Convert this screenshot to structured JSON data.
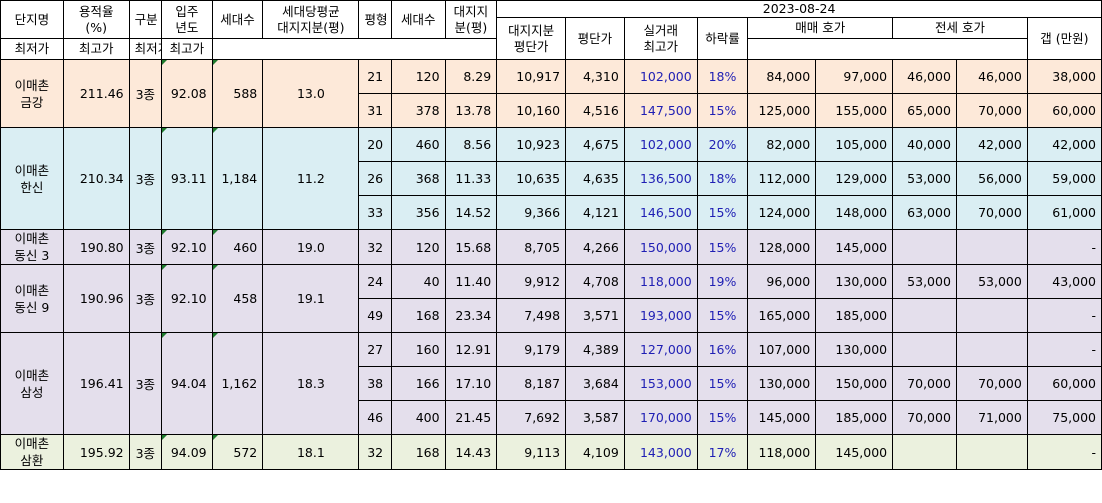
{
  "colors": {
    "complex_backgrounds": [
      "#fde9d9",
      "#daeef3",
      "#e4dfec",
      "#e4dfec",
      "#e4dfec",
      "#ebf1de"
    ],
    "header_bg": "#ffffff",
    "price_text": "#1f1fb4",
    "comment_marker": "#1e7b2e"
  },
  "header": {
    "name": "단지명",
    "far": "용적율\n(%)",
    "grade": "구분",
    "move_in": "입주\n년도",
    "households": "세대수",
    "avg_land": "세대당평균\n대지지분(평)",
    "pyeong": "평형",
    "unit_households": "세대수",
    "land_share": "대지지\n분(평)",
    "date": "2023-08-24",
    "land_price": "대지지분\n평단가",
    "pyeong_price": "평단가",
    "deal_high": "실거래\n최고가",
    "drop_rate": "하락률",
    "sale_ask": "매매 호가",
    "jeonse_ask": "전세 호가",
    "low": "최저가",
    "high": "최고가",
    "gap": "갭 (만원)"
  },
  "complexes": [
    {
      "name": "이매촌\n금강",
      "far": "211.46",
      "grade": "3종",
      "move_in": "92.08",
      "households": "588",
      "avg_land": "13.0",
      "units": [
        {
          "pyeong": "21",
          "households": "120",
          "land": "8.29",
          "land_price": "10,917",
          "pyeong_price": "4,310",
          "deal_high": "102,000",
          "drop": "18%",
          "sale_low": "84,000",
          "sale_high": "97,000",
          "jeonse_low": "46,000",
          "jeonse_high": "46,000",
          "gap": "38,000"
        },
        {
          "pyeong": "31",
          "households": "378",
          "land": "13.78",
          "land_price": "10,160",
          "pyeong_price": "4,516",
          "deal_high": "147,500",
          "drop": "15%",
          "sale_low": "125,000",
          "sale_high": "155,000",
          "jeonse_low": "65,000",
          "jeonse_high": "70,000",
          "gap": "60,000"
        }
      ]
    },
    {
      "name": "이매촌\n한신",
      "far": "210.34",
      "grade": "3종",
      "move_in": "93.11",
      "households": "1,184",
      "avg_land": "11.2",
      "units": [
        {
          "pyeong": "20",
          "households": "460",
          "land": "8.56",
          "land_price": "10,923",
          "pyeong_price": "4,675",
          "deal_high": "102,000",
          "drop": "20%",
          "sale_low": "82,000",
          "sale_high": "105,000",
          "jeonse_low": "40,000",
          "jeonse_high": "42,000",
          "gap": "42,000"
        },
        {
          "pyeong": "26",
          "households": "368",
          "land": "11.33",
          "land_price": "10,635",
          "pyeong_price": "4,635",
          "deal_high": "136,500",
          "drop": "18%",
          "sale_low": "112,000",
          "sale_high": "129,000",
          "jeonse_low": "53,000",
          "jeonse_high": "56,000",
          "gap": "59,000"
        },
        {
          "pyeong": "33",
          "households": "356",
          "land": "14.52",
          "land_price": "9,366",
          "pyeong_price": "4,121",
          "deal_high": "146,500",
          "drop": "15%",
          "sale_low": "124,000",
          "sale_high": "148,000",
          "jeonse_low": "63,000",
          "jeonse_high": "70,000",
          "gap": "61,000"
        }
      ]
    },
    {
      "name": "이매촌\n동신 3",
      "far": "190.80",
      "grade": "3종",
      "move_in": "92.10",
      "households": "460",
      "avg_land": "19.0",
      "units": [
        {
          "pyeong": "32",
          "households": "120",
          "land": "15.68",
          "land_price": "8,705",
          "pyeong_price": "4,266",
          "deal_high": "150,000",
          "drop": "15%",
          "sale_low": "128,000",
          "sale_high": "145,000",
          "jeonse_low": "",
          "jeonse_high": "",
          "gap": "-"
        }
      ]
    },
    {
      "name": "이매촌\n동신 9",
      "far": "190.96",
      "grade": "3종",
      "move_in": "92.10",
      "households": "458",
      "avg_land": "19.1",
      "units": [
        {
          "pyeong": "24",
          "households": "40",
          "land": "11.40",
          "land_price": "9,912",
          "pyeong_price": "4,708",
          "deal_high": "118,000",
          "drop": "19%",
          "sale_low": "96,000",
          "sale_high": "130,000",
          "jeonse_low": "53,000",
          "jeonse_high": "53,000",
          "gap": "43,000"
        },
        {
          "pyeong": "49",
          "households": "168",
          "land": "23.34",
          "land_price": "7,498",
          "pyeong_price": "3,571",
          "deal_high": "193,000",
          "drop": "15%",
          "sale_low": "165,000",
          "sale_high": "185,000",
          "jeonse_low": "",
          "jeonse_high": "",
          "gap": "-"
        }
      ]
    },
    {
      "name": "이매촌\n삼성",
      "far": "196.41",
      "grade": "3종",
      "move_in": "94.04",
      "households": "1,162",
      "avg_land": "18.3",
      "units": [
        {
          "pyeong": "27",
          "households": "160",
          "land": "12.91",
          "land_price": "9,179",
          "pyeong_price": "4,389",
          "deal_high": "127,000",
          "drop": "16%",
          "sale_low": "107,000",
          "sale_high": "130,000",
          "jeonse_low": "",
          "jeonse_high": "",
          "gap": "-"
        },
        {
          "pyeong": "38",
          "households": "166",
          "land": "17.10",
          "land_price": "8,187",
          "pyeong_price": "3,684",
          "deal_high": "153,000",
          "drop": "15%",
          "sale_low": "130,000",
          "sale_high": "150,000",
          "jeonse_low": "70,000",
          "jeonse_high": "70,000",
          "gap": "60,000"
        },
        {
          "pyeong": "46",
          "households": "400",
          "land": "21.45",
          "land_price": "7,692",
          "pyeong_price": "3,587",
          "deal_high": "170,000",
          "drop": "15%",
          "sale_low": "145,000",
          "sale_high": "185,000",
          "jeonse_low": "70,000",
          "jeonse_high": "71,000",
          "gap": "75,000"
        }
      ]
    },
    {
      "name": "이매촌\n삼환",
      "far": "195.92",
      "grade": "3종",
      "move_in": "94.09",
      "households": "572",
      "avg_land": "18.1",
      "units": [
        {
          "pyeong": "32",
          "households": "168",
          "land": "14.43",
          "land_price": "9,113",
          "pyeong_price": "4,109",
          "deal_high": "143,000",
          "drop": "17%",
          "sale_low": "118,000",
          "sale_high": "145,000",
          "jeonse_low": "",
          "jeonse_high": "",
          "gap": "-"
        }
      ]
    }
  ]
}
